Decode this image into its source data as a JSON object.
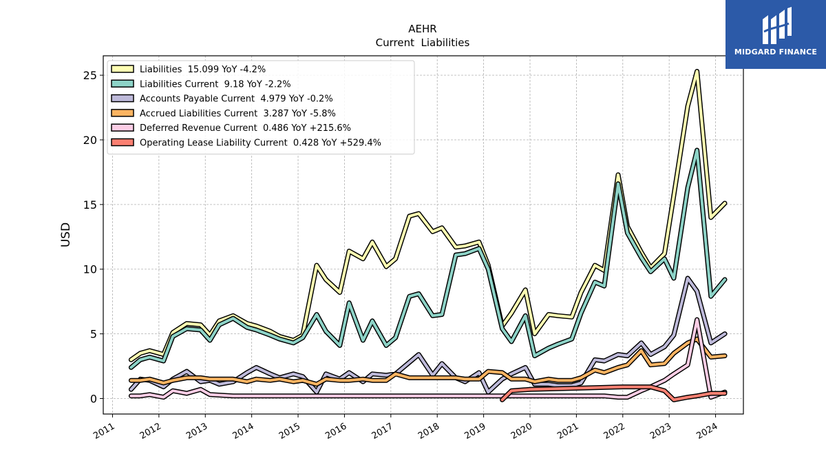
{
  "chart_data": {
    "type": "line",
    "title": "AEHR",
    "subtitle": "Current  Liabilities",
    "ylabel": "USD",
    "xlabel": "",
    "xlim": [
      2010.8,
      2024.6
    ],
    "ylim": [
      -1.2,
      26.5
    ],
    "yticks": [
      0,
      5,
      10,
      15,
      20,
      25
    ],
    "xticks": [
      "2011",
      "2012",
      "2013",
      "2014",
      "2015",
      "2016",
      "2017",
      "2018",
      "2019",
      "2020",
      "2021",
      "2022",
      "2023",
      "2024"
    ],
    "grid": true,
    "legend_position": "top-left",
    "series": [
      {
        "name": "Liabilities",
        "legend": "Liabilities  15.099 YoY -4.2%",
        "color": "#ffffb3",
        "points": [
          [
            2011.4,
            3.0
          ],
          [
            2011.6,
            3.5
          ],
          [
            2011.8,
            3.7
          ],
          [
            2012.1,
            3.4
          ],
          [
            2012.3,
            5.1
          ],
          [
            2012.6,
            5.8
          ],
          [
            2012.9,
            5.7
          ],
          [
            2013.1,
            4.9
          ],
          [
            2013.3,
            6.0
          ],
          [
            2013.6,
            6.4
          ],
          [
            2013.9,
            5.8
          ],
          [
            2014.1,
            5.6
          ],
          [
            2014.4,
            5.2
          ],
          [
            2014.6,
            4.8
          ],
          [
            2014.9,
            4.5
          ],
          [
            2015.1,
            4.9
          ],
          [
            2015.4,
            10.3
          ],
          [
            2015.6,
            9.2
          ],
          [
            2015.9,
            8.2
          ],
          [
            2016.1,
            11.4
          ],
          [
            2016.4,
            10.8
          ],
          [
            2016.6,
            12.1
          ],
          [
            2016.9,
            10.2
          ],
          [
            2017.1,
            10.8
          ],
          [
            2017.4,
            14.1
          ],
          [
            2017.6,
            14.3
          ],
          [
            2017.9,
            12.9
          ],
          [
            2018.1,
            13.2
          ],
          [
            2018.4,
            11.7
          ],
          [
            2018.6,
            11.8
          ],
          [
            2018.9,
            12.1
          ],
          [
            2019.1,
            10.3
          ],
          [
            2019.4,
            5.6
          ],
          [
            2019.6,
            6.6
          ],
          [
            2019.9,
            8.4
          ],
          [
            2020.1,
            5.0
          ],
          [
            2020.4,
            6.5
          ],
          [
            2020.6,
            6.4
          ],
          [
            2020.9,
            6.3
          ],
          [
            2021.1,
            8.2
          ],
          [
            2021.4,
            10.3
          ],
          [
            2021.6,
            9.9
          ],
          [
            2021.9,
            17.3
          ],
          [
            2022.1,
            13.3
          ],
          [
            2022.4,
            11.3
          ],
          [
            2022.6,
            10.1
          ],
          [
            2022.9,
            11.2
          ],
          [
            2023.1,
            15.7
          ],
          [
            2023.4,
            22.6
          ],
          [
            2023.6,
            25.3
          ],
          [
            2023.9,
            14.0
          ],
          [
            2024.2,
            15.1
          ]
        ]
      },
      {
        "name": "Liabilities Current",
        "legend": "Liabilities Current  9.18 YoY -2.2%",
        "color": "#8dd3c7",
        "points": [
          [
            2011.4,
            2.4
          ],
          [
            2011.6,
            3.0
          ],
          [
            2011.8,
            3.2
          ],
          [
            2012.1,
            2.9
          ],
          [
            2012.3,
            4.8
          ],
          [
            2012.6,
            5.4
          ],
          [
            2012.9,
            5.3
          ],
          [
            2013.1,
            4.5
          ],
          [
            2013.3,
            5.7
          ],
          [
            2013.6,
            6.2
          ],
          [
            2013.9,
            5.5
          ],
          [
            2014.1,
            5.3
          ],
          [
            2014.4,
            4.9
          ],
          [
            2014.6,
            4.6
          ],
          [
            2014.9,
            4.3
          ],
          [
            2015.1,
            4.7
          ],
          [
            2015.4,
            6.5
          ],
          [
            2015.6,
            5.2
          ],
          [
            2015.9,
            4.1
          ],
          [
            2016.1,
            7.4
          ],
          [
            2016.4,
            4.5
          ],
          [
            2016.6,
            6.0
          ],
          [
            2016.9,
            4.1
          ],
          [
            2017.1,
            4.7
          ],
          [
            2017.4,
            7.9
          ],
          [
            2017.6,
            8.1
          ],
          [
            2017.9,
            6.4
          ],
          [
            2018.1,
            6.5
          ],
          [
            2018.4,
            11.1
          ],
          [
            2018.6,
            11.2
          ],
          [
            2018.9,
            11.6
          ],
          [
            2019.1,
            10.0
          ],
          [
            2019.4,
            5.4
          ],
          [
            2019.6,
            4.4
          ],
          [
            2019.9,
            6.4
          ],
          [
            2020.1,
            3.3
          ],
          [
            2020.4,
            3.9
          ],
          [
            2020.6,
            4.2
          ],
          [
            2020.9,
            4.6
          ],
          [
            2021.1,
            6.6
          ],
          [
            2021.4,
            9.0
          ],
          [
            2021.6,
            8.7
          ],
          [
            2021.9,
            16.6
          ],
          [
            2022.1,
            12.8
          ],
          [
            2022.4,
            10.9
          ],
          [
            2022.6,
            9.8
          ],
          [
            2022.9,
            10.8
          ],
          [
            2023.1,
            9.3
          ],
          [
            2023.4,
            16.3
          ],
          [
            2023.6,
            19.2
          ],
          [
            2023.9,
            7.9
          ],
          [
            2024.2,
            9.2
          ]
        ]
      },
      {
        "name": "Accounts Payable Current",
        "legend": "Accounts Payable Current  4.979 YoY -0.2%",
        "color": "#bebada",
        "points": [
          [
            2011.4,
            0.7
          ],
          [
            2011.6,
            1.5
          ],
          [
            2011.8,
            1.4
          ],
          [
            2012.1,
            0.9
          ],
          [
            2012.3,
            1.5
          ],
          [
            2012.6,
            2.1
          ],
          [
            2012.9,
            1.3
          ],
          [
            2013.1,
            1.4
          ],
          [
            2013.3,
            1.1
          ],
          [
            2013.6,
            1.3
          ],
          [
            2013.9,
            2.0
          ],
          [
            2014.1,
            2.4
          ],
          [
            2014.4,
            1.9
          ],
          [
            2014.6,
            1.6
          ],
          [
            2014.9,
            1.9
          ],
          [
            2015.1,
            1.7
          ],
          [
            2015.4,
            0.5
          ],
          [
            2015.6,
            1.9
          ],
          [
            2015.9,
            1.5
          ],
          [
            2016.1,
            2.0
          ],
          [
            2016.4,
            1.3
          ],
          [
            2016.6,
            1.9
          ],
          [
            2016.9,
            1.8
          ],
          [
            2017.1,
            1.9
          ],
          [
            2017.4,
            2.8
          ],
          [
            2017.6,
            3.4
          ],
          [
            2017.9,
            1.8
          ],
          [
            2018.1,
            2.7
          ],
          [
            2018.4,
            1.6
          ],
          [
            2018.6,
            1.3
          ],
          [
            2018.9,
            2.0
          ],
          [
            2019.1,
            0.5
          ],
          [
            2019.4,
            1.5
          ],
          [
            2019.6,
            1.9
          ],
          [
            2019.9,
            2.4
          ],
          [
            2020.1,
            1.1
          ],
          [
            2020.4,
            1.1
          ],
          [
            2020.6,
            1.0
          ],
          [
            2020.9,
            1.0
          ],
          [
            2021.1,
            1.2
          ],
          [
            2021.4,
            3.0
          ],
          [
            2021.6,
            2.9
          ],
          [
            2021.9,
            3.4
          ],
          [
            2022.1,
            3.3
          ],
          [
            2022.4,
            4.3
          ],
          [
            2022.6,
            3.4
          ],
          [
            2022.9,
            4.0
          ],
          [
            2023.1,
            4.9
          ],
          [
            2023.4,
            9.3
          ],
          [
            2023.6,
            8.3
          ],
          [
            2023.9,
            4.3
          ],
          [
            2024.2,
            5.0
          ]
        ]
      },
      {
        "name": "Accrued Liabilities Current",
        "legend": "Accrued Liabilities Current  3.287 YoY -5.8%",
        "color": "#fdb462",
        "points": [
          [
            2011.4,
            1.4
          ],
          [
            2011.6,
            1.4
          ],
          [
            2011.8,
            1.5
          ],
          [
            2012.1,
            1.2
          ],
          [
            2012.3,
            1.4
          ],
          [
            2012.6,
            1.6
          ],
          [
            2012.9,
            1.6
          ],
          [
            2013.1,
            1.5
          ],
          [
            2013.3,
            1.5
          ],
          [
            2013.6,
            1.5
          ],
          [
            2013.9,
            1.3
          ],
          [
            2014.1,
            1.5
          ],
          [
            2014.4,
            1.4
          ],
          [
            2014.6,
            1.5
          ],
          [
            2014.9,
            1.3
          ],
          [
            2015.1,
            1.4
          ],
          [
            2015.4,
            1.1
          ],
          [
            2015.6,
            1.5
          ],
          [
            2015.9,
            1.4
          ],
          [
            2016.1,
            1.4
          ],
          [
            2016.4,
            1.5
          ],
          [
            2016.6,
            1.4
          ],
          [
            2016.9,
            1.4
          ],
          [
            2017.1,
            1.9
          ],
          [
            2017.4,
            1.6
          ],
          [
            2017.6,
            1.6
          ],
          [
            2017.9,
            1.6
          ],
          [
            2018.1,
            1.6
          ],
          [
            2018.4,
            1.6
          ],
          [
            2018.6,
            1.5
          ],
          [
            2018.9,
            1.5
          ],
          [
            2019.1,
            2.1
          ],
          [
            2019.4,
            2.0
          ],
          [
            2019.6,
            1.5
          ],
          [
            2019.9,
            1.5
          ],
          [
            2020.1,
            1.3
          ],
          [
            2020.4,
            1.5
          ],
          [
            2020.6,
            1.4
          ],
          [
            2020.9,
            1.4
          ],
          [
            2021.1,
            1.6
          ],
          [
            2021.4,
            2.2
          ],
          [
            2021.6,
            2.0
          ],
          [
            2021.9,
            2.4
          ],
          [
            2022.1,
            2.6
          ],
          [
            2022.4,
            3.7
          ],
          [
            2022.6,
            2.6
          ],
          [
            2022.9,
            2.7
          ],
          [
            2023.1,
            3.5
          ],
          [
            2023.4,
            4.3
          ],
          [
            2023.6,
            4.6
          ],
          [
            2023.9,
            3.2
          ],
          [
            2024.2,
            3.3
          ]
        ]
      },
      {
        "name": "Deferred Revenue Current",
        "legend": "Deferred Revenue Current  0.486 YoY +215.6%",
        "color": "#fccde5",
        "points": [
          [
            2011.4,
            0.2
          ],
          [
            2011.6,
            0.2
          ],
          [
            2011.8,
            0.3
          ],
          [
            2012.1,
            0.1
          ],
          [
            2012.3,
            0.6
          ],
          [
            2012.6,
            0.4
          ],
          [
            2012.9,
            0.7
          ],
          [
            2013.1,
            0.3
          ],
          [
            2013.6,
            0.2
          ],
          [
            2015.0,
            0.2
          ],
          [
            2018.0,
            0.2
          ],
          [
            2020.0,
            0.2
          ],
          [
            2021.0,
            0.2
          ],
          [
            2021.6,
            0.2
          ],
          [
            2021.9,
            0.1
          ],
          [
            2022.1,
            0.1
          ],
          [
            2022.4,
            0.6
          ],
          [
            2022.6,
            0.9
          ],
          [
            2022.9,
            1.4
          ],
          [
            2023.1,
            1.9
          ],
          [
            2023.4,
            2.6
          ],
          [
            2023.6,
            6.1
          ],
          [
            2023.9,
            0.1
          ],
          [
            2024.2,
            0.5
          ]
        ]
      },
      {
        "name": "Operating Lease Liability Current",
        "legend": "Operating Lease Liability Current  0.428 YoY +529.4%",
        "color": "#fb8072",
        "points": [
          [
            2019.4,
            -0.1
          ],
          [
            2019.6,
            0.6
          ],
          [
            2020.0,
            0.7
          ],
          [
            2021.0,
            0.8
          ],
          [
            2022.0,
            0.9
          ],
          [
            2022.6,
            0.9
          ],
          [
            2022.9,
            0.6
          ],
          [
            2023.1,
            -0.1
          ],
          [
            2023.4,
            0.1
          ],
          [
            2023.6,
            0.2
          ],
          [
            2023.9,
            0.4
          ],
          [
            2024.2,
            0.4
          ]
        ]
      }
    ]
  },
  "brand": {
    "name": "MIDGARD FINANCE",
    "color": "#2c5aa8",
    "icon": "midgard-logo-icon"
  }
}
